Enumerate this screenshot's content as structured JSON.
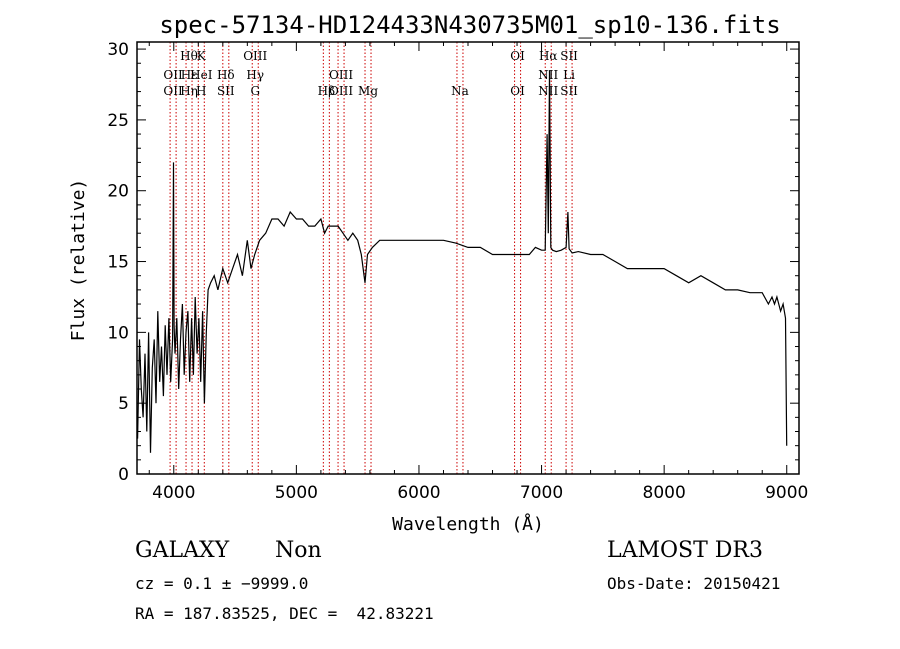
{
  "chart_data": {
    "type": "line",
    "title": "spec-57134-HD124433N430735M01_sp10-136.fits",
    "xlabel": "Wavelength (Å)",
    "ylabel": "Flux (relative)",
    "xlim": [
      3700,
      9100
    ],
    "ylim": [
      0,
      30.5
    ],
    "xticks": [
      4000,
      5000,
      6000,
      7000,
      8000,
      9000
    ],
    "yticks": [
      0,
      5,
      10,
      15,
      20,
      25,
      30
    ],
    "line_color": "#000000",
    "marker_color": "#cc0000",
    "series": [
      {
        "x": [
          3705,
          3720,
          3735,
          3750,
          3765,
          3780,
          3795,
          3810,
          3825,
          3840,
          3855,
          3870,
          3885,
          3900,
          3915,
          3930,
          3945,
          3960,
          3975,
          3990,
          3998,
          4003,
          4010,
          4025,
          4040,
          4055,
          4070,
          4085,
          4100,
          4115,
          4130,
          4145,
          4160,
          4175,
          4190,
          4205,
          4220,
          4235,
          4250,
          4265,
          4280,
          4300,
          4330,
          4360,
          4400,
          4440,
          4480,
          4520,
          4560,
          4600,
          4630,
          4660,
          4700,
          4750,
          4800,
          4850,
          4900,
          4950,
          5000,
          5050,
          5100,
          5150,
          5200,
          5230,
          5260,
          5300,
          5340,
          5380,
          5420,
          5460,
          5500,
          5530,
          5560,
          5580,
          5620,
          5680,
          5740,
          5800,
          5880,
          5960,
          6040,
          6120,
          6200,
          6300,
          6400,
          6500,
          6600,
          6700,
          6760,
          6800,
          6850,
          6900,
          6950,
          7000,
          7030,
          7045,
          7055,
          7065,
          7075,
          7090,
          7120,
          7160,
          7200,
          7215,
          7225,
          7250,
          7300,
          7400,
          7500,
          7600,
          7700,
          7800,
          7900,
          8000,
          8100,
          8200,
          8300,
          8400,
          8500,
          8600,
          8700,
          8800,
          8850,
          8880,
          8900,
          8920,
          8950,
          8970,
          8990,
          9000
        ],
        "y": [
          2.5,
          9.5,
          6.0,
          4.0,
          8.5,
          3.0,
          10.0,
          1.5,
          7.5,
          9.5,
          5.0,
          11.5,
          6.5,
          9.0,
          5.5,
          10.5,
          7.0,
          11.0,
          6.5,
          9.5,
          22.0,
          10.5,
          8.5,
          11.0,
          6.0,
          9.5,
          12.0,
          7.0,
          10.0,
          11.5,
          6.5,
          11.0,
          7.0,
          12.5,
          8.5,
          11.0,
          6.5,
          11.5,
          5.0,
          10.0,
          13.0,
          13.5,
          14.0,
          13.0,
          14.5,
          13.5,
          14.5,
          15.5,
          14.0,
          16.5,
          14.5,
          15.5,
          16.5,
          17.0,
          18.0,
          18.0,
          17.5,
          18.5,
          18.0,
          18.0,
          17.5,
          17.5,
          18.0,
          17.0,
          17.5,
          17.5,
          17.5,
          17.0,
          16.5,
          17.0,
          16.5,
          15.5,
          13.5,
          15.5,
          16.0,
          16.5,
          16.5,
          16.5,
          16.5,
          16.5,
          16.5,
          16.5,
          16.5,
          16.3,
          16.0,
          16.0,
          15.5,
          15.5,
          15.5,
          15.5,
          15.5,
          15.5,
          16.0,
          15.8,
          15.8,
          24.0,
          17.0,
          28.5,
          16.0,
          15.8,
          15.7,
          15.8,
          16.0,
          18.5,
          15.9,
          15.6,
          15.7,
          15.5,
          15.5,
          15.0,
          14.5,
          14.5,
          14.5,
          14.5,
          14.0,
          13.5,
          14.0,
          13.5,
          13.0,
          13.0,
          12.8,
          12.8,
          12.0,
          12.5,
          12.0,
          12.5,
          11.5,
          12.0,
          11.0,
          2.0
        ]
      }
    ],
    "lines": [
      {
        "x": 3970,
        "labels": [
          "OII",
          "OII"
        ]
      },
      {
        "x": 4100,
        "labels": [
          "Hθ",
          "Hε",
          "Hη"
        ]
      },
      {
        "x": 4200,
        "labels": [
          "K",
          "HeI",
          "H"
        ]
      },
      {
        "x": 4400,
        "labels": [
          "Hδ",
          "SII"
        ]
      },
      {
        "x": 4640,
        "labels": [
          "OIII",
          "Hγ",
          "G"
        ]
      },
      {
        "x": 5220,
        "labels": [
          "Hβ"
        ]
      },
      {
        "x": 5340,
        "labels": [
          "OIII",
          "OIII"
        ]
      },
      {
        "x": 5560,
        "labels": [
          "Mg"
        ]
      },
      {
        "x": 6310,
        "labels": [
          "Na"
        ]
      },
      {
        "x": 6780,
        "labels": [
          "OI",
          "OI"
        ]
      },
      {
        "x": 7030,
        "labels": [
          "Hα",
          "NII",
          "NII"
        ]
      },
      {
        "x": 7200,
        "labels": [
          "SII",
          "Li",
          "SII"
        ]
      }
    ]
  },
  "info": {
    "object_class": "GALAXY",
    "subclass": "Non",
    "survey": "LAMOST DR3",
    "cz": "cz = 0.1 ± −9999.0",
    "obs_date": "Obs-Date: 20150421",
    "radec": "RA = 187.83525, DEC =  42.83221"
  }
}
